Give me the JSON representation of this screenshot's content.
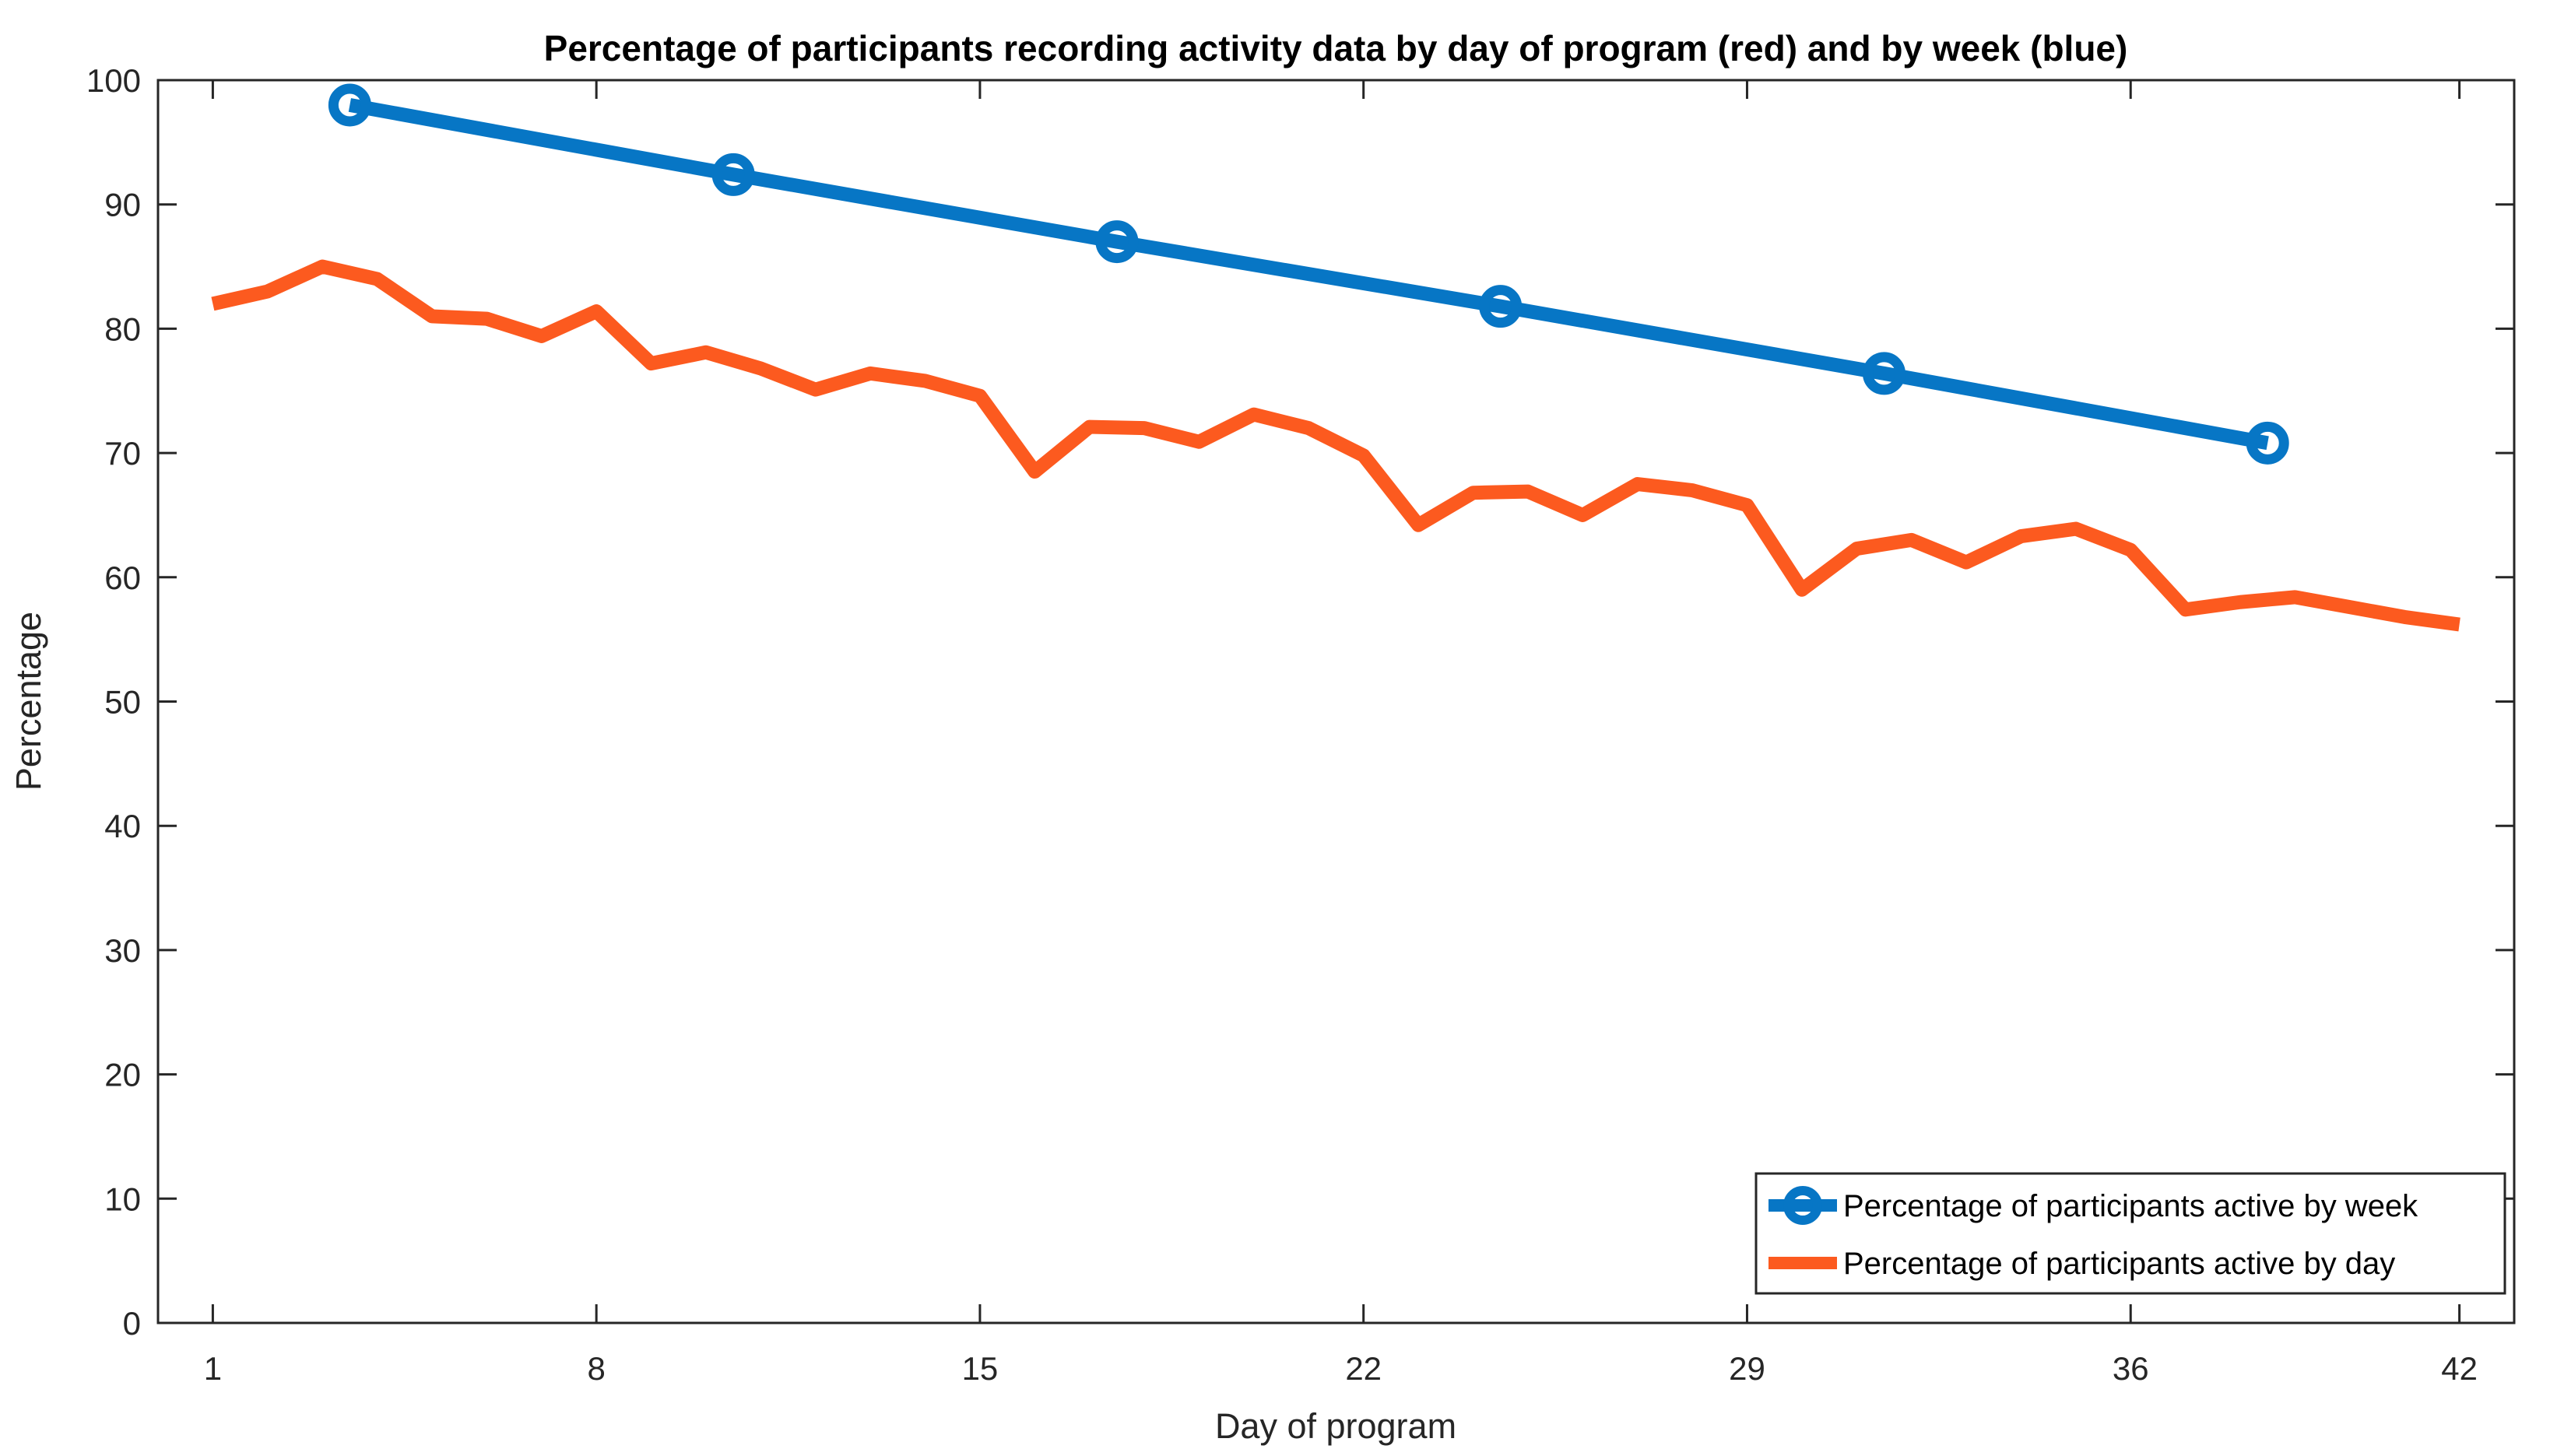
{
  "figure": {
    "background": "#ffffff",
    "axis_color": "#262626",
    "text_color": "#000000"
  },
  "chart_data": {
    "type": "line",
    "title": "Percentage of participants recording activity data by day of program (red) and by week (blue)",
    "xlabel": "Day of program",
    "ylabel": "Percentage",
    "xlim": [
      0,
      43
    ],
    "ylim": [
      0,
      100
    ],
    "xticks": [
      1,
      8,
      15,
      22,
      29,
      36,
      42
    ],
    "yticks": [
      0,
      10,
      20,
      30,
      40,
      50,
      60,
      70,
      80,
      90,
      100
    ],
    "grid": false,
    "legend_position": "lower right",
    "series": [
      {
        "name": "Percentage of participants active by week",
        "color": "#0776c5",
        "marker": "circle",
        "line_width": 18,
        "x": [
          3.5,
          10.5,
          17.5,
          24.5,
          31.5,
          38.5
        ],
        "values": [
          98.0,
          92.4,
          87.0,
          81.8,
          76.4,
          70.8
        ]
      },
      {
        "name": "Percentage of participants active by day",
        "color": "#fc5a1f",
        "marker": "none",
        "line_width": 18,
        "x": [
          1,
          2,
          3,
          4,
          5,
          6,
          7,
          8,
          9,
          10,
          11,
          12,
          13,
          14,
          15,
          16,
          17,
          18,
          19,
          20,
          21,
          22,
          23,
          24,
          25,
          26,
          27,
          28,
          29,
          30,
          31,
          32,
          33,
          34,
          35,
          36,
          37,
          38,
          39,
          40,
          41,
          42
        ],
        "values": [
          82.0,
          83.0,
          85.0,
          84.0,
          81.0,
          80.8,
          79.4,
          81.4,
          77.2,
          78.1,
          76.8,
          75.1,
          76.4,
          75.8,
          74.6,
          68.5,
          72.1,
          72.0,
          70.9,
          73.1,
          72.0,
          69.8,
          64.2,
          66.8,
          66.9,
          65.0,
          67.5,
          67.0,
          65.8,
          59.0,
          62.3,
          63.0,
          61.2,
          63.3,
          63.9,
          62.2,
          57.4,
          58.0,
          58.4,
          57.6,
          56.8,
          56.2
        ]
      }
    ]
  }
}
